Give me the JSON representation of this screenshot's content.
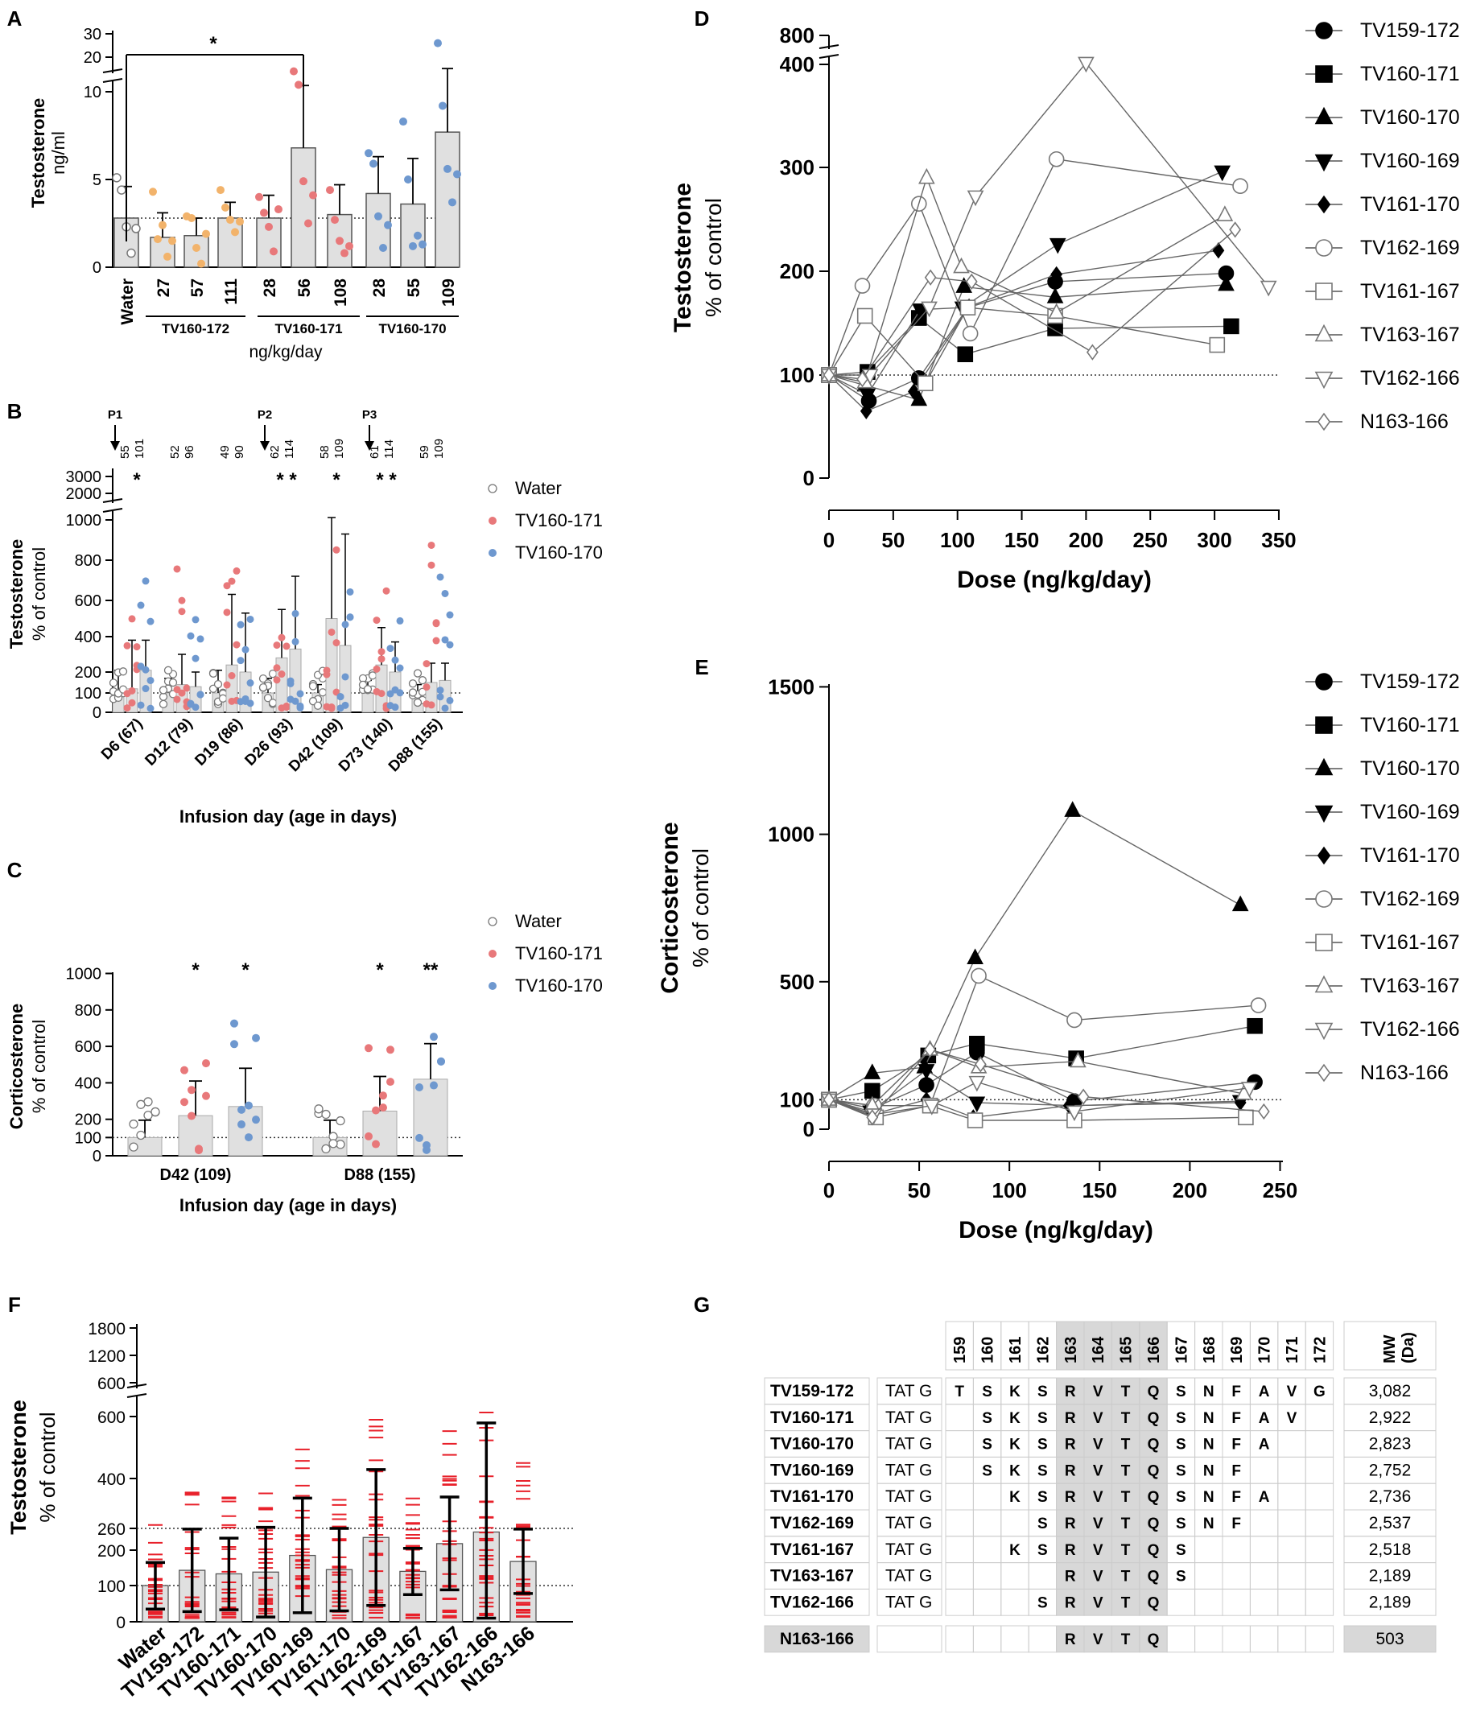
{
  "colors": {
    "water": "#ffffff",
    "tv171": "#e8787a",
    "tv170": "#6e98cf",
    "tv172": "#f2b36b",
    "bar": "#e0e0e0",
    "grey": "#777777",
    "red": "#e8202a",
    "shade": "#d8d8d8"
  },
  "panel_labels": [
    "A",
    "B",
    "C",
    "D",
    "E",
    "F",
    "G"
  ],
  "chart_data": [
    {
      "panel": "A",
      "type": "bar",
      "ylabel": [
        "Testosterone",
        "ng/ml"
      ],
      "xlabel": "ng/kg/day",
      "categories": [
        "Water",
        "27",
        "57",
        "111",
        "28",
        "56",
        "108",
        "28",
        "55",
        "109"
      ],
      "groups": [
        {
          "name": "TV160-172",
          "members": [
            1,
            2,
            3
          ]
        },
        {
          "name": "TV160-171",
          "members": [
            4,
            5,
            6
          ]
        },
        {
          "name": "TV160-170",
          "members": [
            7,
            8,
            9
          ]
        }
      ],
      "yticks_lower": [
        "0",
        "5",
        "10"
      ],
      "yticks_upper": [
        "20",
        "30"
      ],
      "values": [
        2.8,
        1.7,
        1.8,
        2.8,
        2.8,
        6.8,
        3.0,
        4.2,
        3.6,
        7.7
      ],
      "errors": [
        1.8,
        1.4,
        1.0,
        0.9,
        1.3,
        5.0,
        1.7,
        2.1,
        2.6,
        9.0
      ],
      "points": [
        [
          5.1,
          4.4,
          2.3,
          0.8,
          2.2
        ],
        [
          4.3,
          1.6,
          2.4,
          0.6,
          1.5
        ],
        [
          2.9,
          2.8,
          1.1,
          0.2,
          1.9
        ],
        [
          4.4,
          3.4,
          2.7,
          2.0,
          2.6
        ],
        [
          4.0,
          3.1,
          2.3,
          0.9,
          3.3
        ],
        [
          15.9,
          12,
          4.9,
          2.5,
          4.1
        ],
        [
          4.4,
          2.7,
          1.5,
          0.8,
          1.2
        ],
        [
          6.5,
          5.9,
          2.9,
          1.1,
          2.4
        ],
        [
          8.3,
          5.0,
          1.2,
          1.8,
          1.3
        ],
        [
          26,
          9.2,
          5.6,
          3.7,
          5.3
        ]
      ],
      "point_colors": [
        "water",
        "tv172",
        "tv172",
        "tv172",
        "tv171",
        "tv171",
        "tv171",
        "tv170",
        "tv170",
        "tv170"
      ],
      "dotted_line": 2.8,
      "significance": [
        {
          "from": 0,
          "to": 5,
          "label": "*"
        }
      ]
    },
    {
      "panel": "B",
      "type": "bar",
      "ylabel": [
        "Testosterone",
        "% of control"
      ],
      "xlabel": "Infusion day (age in days)",
      "categories": [
        "D6 (67)",
        "D12 (79)",
        "D19 (86)",
        "D26 (93)",
        "D42 (109)",
        "D73 (140)",
        "D88 (155)"
      ],
      "yticks_lower": [
        "0",
        "100",
        "200",
        "400",
        "600",
        "800",
        "1000"
      ],
      "yticks_upper": [
        "2000",
        "3000"
      ],
      "legend": [
        "Water",
        "TV160-171",
        "TV160-170"
      ],
      "pulses": [
        "P1",
        "P2",
        "P3"
      ],
      "doses": [
        [
          "55",
          "101"
        ],
        [
          "52",
          "96"
        ],
        [
          "49",
          "90"
        ],
        [
          "62",
          "114"
        ],
        [
          "58",
          "109"
        ],
        [
          "61",
          "114"
        ],
        [
          "59",
          "109"
        ]
      ],
      "series": [
        {
          "name": "Water",
          "values": [
            100,
            100,
            100,
            100,
            100,
            100,
            100
          ],
          "errors": [
            110,
            70,
            110,
            70,
            40,
            60,
            40
          ]
        },
        {
          "name": "TV160-171",
          "values": [
            120,
            140,
            240,
            280,
            500,
            240,
            150
          ],
          "errors": [
            260,
            160,
            390,
            270,
            590,
            210,
            100
          ]
        },
        {
          "name": "TV160-170",
          "values": [
            210,
            130,
            200,
            330,
            350,
            200,
            160
          ],
          "errors": [
            170,
            70,
            330,
            390,
            580,
            170,
            90
          ]
        }
      ],
      "significance": [
        "*",
        "",
        "",
        "* *",
        "*",
        "* *",
        ""
      ]
    },
    {
      "panel": "C",
      "type": "bar",
      "ylabel": [
        "Corticosterone",
        "% of control"
      ],
      "xlabel": "Infusion day (age in days)",
      "categories": [
        "D42 (109)",
        "D88 (155)"
      ],
      "yticks": [
        "0",
        "100",
        "200",
        "400",
        "600",
        "800",
        "1000"
      ],
      "legend": [
        "Water",
        "TV160-171",
        "TV160-170"
      ],
      "series": [
        {
          "name": "Water",
          "values": [
            100,
            100
          ],
          "errors": [
            95,
            95
          ]
        },
        {
          "name": "TV160-171",
          "values": [
            220,
            245
          ],
          "errors": [
            190,
            190
          ]
        },
        {
          "name": "TV160-170",
          "values": [
            270,
            420
          ],
          "errors": [
            210,
            195
          ]
        }
      ],
      "significance": [
        [
          "",
          "*",
          "*"
        ],
        [
          "",
          "*",
          "**"
        ]
      ]
    },
    {
      "panel": "D",
      "type": "line",
      "ylabel": [
        "Testosterone",
        "% of control"
      ],
      "xlabel": "Dose (ng/kg/day)",
      "xticks": [
        "0",
        "50",
        "100",
        "150",
        "200",
        "250",
        "300",
        "350"
      ],
      "yticks": [
        "0",
        "100",
        "200",
        "300",
        "400",
        "800"
      ],
      "series": [
        {
          "name": "TV159-172",
          "x": [
            0,
            31,
            70,
            108,
            176,
            309
          ],
          "y": [
            100,
            75,
            97,
            165,
            190,
            198
          ]
        },
        {
          "name": "TV160-171",
          "x": [
            0,
            30,
            70,
            106,
            176,
            313
          ],
          "y": [
            100,
            103,
            155,
            120,
            145,
            147
          ]
        },
        {
          "name": "TV160-170",
          "x": [
            0,
            28,
            70,
            105,
            176,
            309
          ],
          "y": [
            100,
            90,
            76,
            185,
            175,
            187
          ]
        },
        {
          "name": "TV160-169",
          "x": [
            0,
            30,
            71,
            104,
            178,
            306
          ],
          "y": [
            100,
            81,
            163,
            165,
            226,
            296
          ]
        },
        {
          "name": "TV161-170",
          "x": [
            0,
            29,
            66,
            109,
            177,
            303
          ],
          "y": [
            100,
            65,
            84,
            166,
            197,
            220
          ]
        },
        {
          "name": "TV162-169",
          "x": [
            0,
            26,
            70,
            110,
            177,
            320
          ],
          "y": [
            100,
            186,
            265,
            140,
            308,
            282
          ]
        },
        {
          "name": "TV161-167",
          "x": [
            0,
            28,
            75,
            108,
            176,
            302
          ],
          "y": [
            100,
            157,
            92,
            165,
            157,
            129
          ]
        },
        {
          "name": "TV163-167",
          "x": [
            0,
            28,
            76,
            103,
            177,
            308
          ],
          "y": [
            100,
            93,
            290,
            204,
            160,
            254
          ]
        },
        {
          "name": "TV162-166",
          "x": [
            0,
            32,
            78,
            114,
            200,
            342
          ],
          "y": [
            100,
            100,
            165,
            272,
            420,
            185
          ]
        },
        {
          "name": "N163-166",
          "x": [
            0,
            26,
            79,
            111,
            205,
            316
          ],
          "y": [
            100,
            96,
            194,
            190,
            122,
            240
          ]
        }
      ]
    },
    {
      "panel": "E",
      "type": "line",
      "ylabel": [
        "Corticosterone",
        "% of control"
      ],
      "xlabel": "Dose (ng/kg/day)",
      "xticks": [
        "0",
        "50",
        "100",
        "150",
        "200",
        "250"
      ],
      "yticks": [
        "0",
        "100",
        "500",
        "1000",
        "1500"
      ],
      "series": [
        {
          "name": "TV159-172",
          "x": [
            0,
            24,
            54,
            82,
            136,
            236
          ],
          "y": [
            100,
            70,
            150,
            260,
            95,
            160
          ]
        },
        {
          "name": "TV160-171",
          "x": [
            0,
            24,
            55,
            82,
            137,
            236
          ],
          "y": [
            100,
            130,
            250,
            290,
            240,
            350
          ]
        },
        {
          "name": "TV160-170",
          "x": [
            0,
            24,
            53,
            81,
            135,
            228
          ],
          "y": [
            100,
            190,
            210,
            580,
            1080,
            760
          ]
        },
        {
          "name": "TV160-169",
          "x": [
            0,
            23,
            54,
            82,
            136,
            228
          ],
          "y": [
            100,
            60,
            200,
            90,
            80,
            95
          ]
        },
        {
          "name": "TV161-170",
          "x": [
            0,
            24,
            54,
            80,
            133,
            228
          ],
          "y": [
            100,
            50,
            100,
            40,
            80,
            90
          ]
        },
        {
          "name": "TV162-169",
          "x": [
            0,
            25,
            56,
            83,
            136,
            238
          ],
          "y": [
            100,
            80,
            80,
            520,
            370,
            420
          ]
        },
        {
          "name": "TV161-167",
          "x": [
            0,
            26,
            56,
            81,
            136,
            231
          ],
          "y": [
            100,
            40,
            80,
            30,
            30,
            40
          ]
        },
        {
          "name": "TV163-167",
          "x": [
            0,
            24,
            56,
            83,
            138,
            230
          ],
          "y": [
            100,
            80,
            270,
            210,
            230,
            120
          ]
        },
        {
          "name": "TV162-166",
          "x": [
            0,
            25,
            57,
            82,
            136,
            233
          ],
          "y": [
            100,
            50,
            80,
            160,
            60,
            140
          ]
        },
        {
          "name": "N163-166",
          "x": [
            0,
            24,
            56,
            84,
            141,
            241
          ],
          "y": [
            100,
            40,
            270,
            220,
            110,
            60
          ]
        }
      ]
    },
    {
      "panel": "F",
      "type": "bar",
      "ylabel": [
        "Testosterone",
        "% of control"
      ],
      "categories": [
        "Water",
        "TV159-172",
        "TV160-171",
        "TV160-170",
        "TV160-169",
        "TV161-170",
        "TV162-169",
        "TV161-167",
        "TV163-167",
        "TV162-166",
        "N163-166"
      ],
      "yticks_lower": [
        "0",
        "100",
        "200",
        "260",
        "400",
        "600"
      ],
      "yticks_upper": [
        "600",
        "1200",
        "1800"
      ],
      "values": [
        100,
        143,
        133,
        138,
        185,
        145,
        235,
        140,
        218,
        250,
        168
      ],
      "errors": [
        65,
        115,
        100,
        125,
        160,
        115,
        190,
        65,
        130,
        305,
        90
      ],
      "dotted_lines": [
        100,
        260
      ]
    },
    {
      "panel": "G",
      "type": "table",
      "positions": [
        "159",
        "160",
        "161",
        "162",
        "163",
        "164",
        "165",
        "166",
        "167",
        "168",
        "169",
        "170",
        "171",
        "172"
      ],
      "mw_header": [
        "MW",
        "(Da)"
      ],
      "rows": [
        {
          "name": "TV159-172",
          "tag": "TAT G",
          "seq": [
            "T",
            "S",
            "K",
            "S",
            "R",
            "V",
            "T",
            "Q",
            "S",
            "N",
            "F",
            "A",
            "V",
            "G"
          ],
          "mw": "3,082"
        },
        {
          "name": "TV160-171",
          "tag": "TAT G",
          "seq": [
            "",
            "S",
            "K",
            "S",
            "R",
            "V",
            "T",
            "Q",
            "S",
            "N",
            "F",
            "A",
            "V",
            ""
          ],
          "mw": "2,922"
        },
        {
          "name": "TV160-170",
          "tag": "TAT G",
          "seq": [
            "",
            "S",
            "K",
            "S",
            "R",
            "V",
            "T",
            "Q",
            "S",
            "N",
            "F",
            "A",
            "",
            ""
          ],
          "mw": "2,823"
        },
        {
          "name": "TV160-169",
          "tag": "TAT G",
          "seq": [
            "",
            "S",
            "K",
            "S",
            "R",
            "V",
            "T",
            "Q",
            "S",
            "N",
            "F",
            "",
            "",
            ""
          ],
          "mw": "2,752"
        },
        {
          "name": "TV161-170",
          "tag": "TAT G",
          "seq": [
            "",
            "",
            "K",
            "S",
            "R",
            "V",
            "T",
            "Q",
            "S",
            "N",
            "F",
            "A",
            "",
            ""
          ],
          "mw": "2,736"
        },
        {
          "name": "TV162-169",
          "tag": "TAT G",
          "seq": [
            "",
            "",
            "",
            "S",
            "R",
            "V",
            "T",
            "Q",
            "S",
            "N",
            "F",
            "",
            "",
            ""
          ],
          "mw": "2,537"
        },
        {
          "name": "TV161-167",
          "tag": "TAT G",
          "seq": [
            "",
            "",
            "K",
            "S",
            "R",
            "V",
            "T",
            "Q",
            "S",
            "",
            "",
            "",
            "",
            ""
          ],
          "mw": "2,518"
        },
        {
          "name": "TV163-167",
          "tag": "TAT G",
          "seq": [
            "",
            "",
            "",
            "",
            "R",
            "V",
            "T",
            "Q",
            "S",
            "",
            "",
            "",
            "",
            ""
          ],
          "mw": "2,189"
        },
        {
          "name": "TV162-166",
          "tag": "TAT G",
          "seq": [
            "",
            "",
            "",
            "S",
            "R",
            "V",
            "T",
            "Q",
            "",
            "",
            "",
            "",
            "",
            ""
          ],
          "mw": "2,189"
        },
        {
          "name": "N163-166",
          "tag": "",
          "seq": [
            "",
            "",
            "",
            "",
            "R",
            "V",
            "T",
            "Q",
            "",
            "",
            "",
            "",
            "",
            ""
          ],
          "mw": "503"
        }
      ]
    }
  ]
}
